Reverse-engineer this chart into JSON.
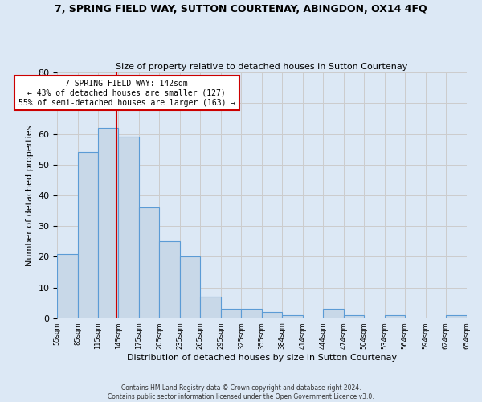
{
  "title": "7, SPRING FIELD WAY, SUTTON COURTENAY, ABINGDON, OX14 4FQ",
  "subtitle": "Size of property relative to detached houses in Sutton Courtenay",
  "xlabel": "Distribution of detached houses by size in Sutton Courtenay",
  "ylabel": "Number of detached properties",
  "bar_values": [
    21,
    54,
    62,
    59,
    36,
    25,
    20,
    7,
    3,
    3,
    2,
    1,
    0,
    3,
    1,
    0,
    1,
    0,
    0,
    1
  ],
  "bin_labels": [
    "55sqm",
    "85sqm",
    "115sqm",
    "145sqm",
    "175sqm",
    "205sqm",
    "235sqm",
    "265sqm",
    "295sqm",
    "325sqm",
    "355sqm",
    "384sqm",
    "414sqm",
    "444sqm",
    "474sqm",
    "504sqm",
    "534sqm",
    "564sqm",
    "594sqm",
    "624sqm",
    "654sqm"
  ],
  "bar_color": "#c8d8e8",
  "bar_edge_color": "#5b9bd5",
  "vline_x": 2.9,
  "vline_color": "#cc0000",
  "annotation_text": "7 SPRING FIELD WAY: 142sqm\n← 43% of detached houses are smaller (127)\n55% of semi-detached houses are larger (163) →",
  "annotation_box_color": "#cc0000",
  "ylim": [
    0,
    80
  ],
  "yticks": [
    0,
    10,
    20,
    30,
    40,
    50,
    60,
    70,
    80
  ],
  "grid_color": "#cccccc",
  "bg_color": "#dce8f5",
  "footer": "Contains HM Land Registry data © Crown copyright and database right 2024.\nContains public sector information licensed under the Open Government Licence v3.0."
}
